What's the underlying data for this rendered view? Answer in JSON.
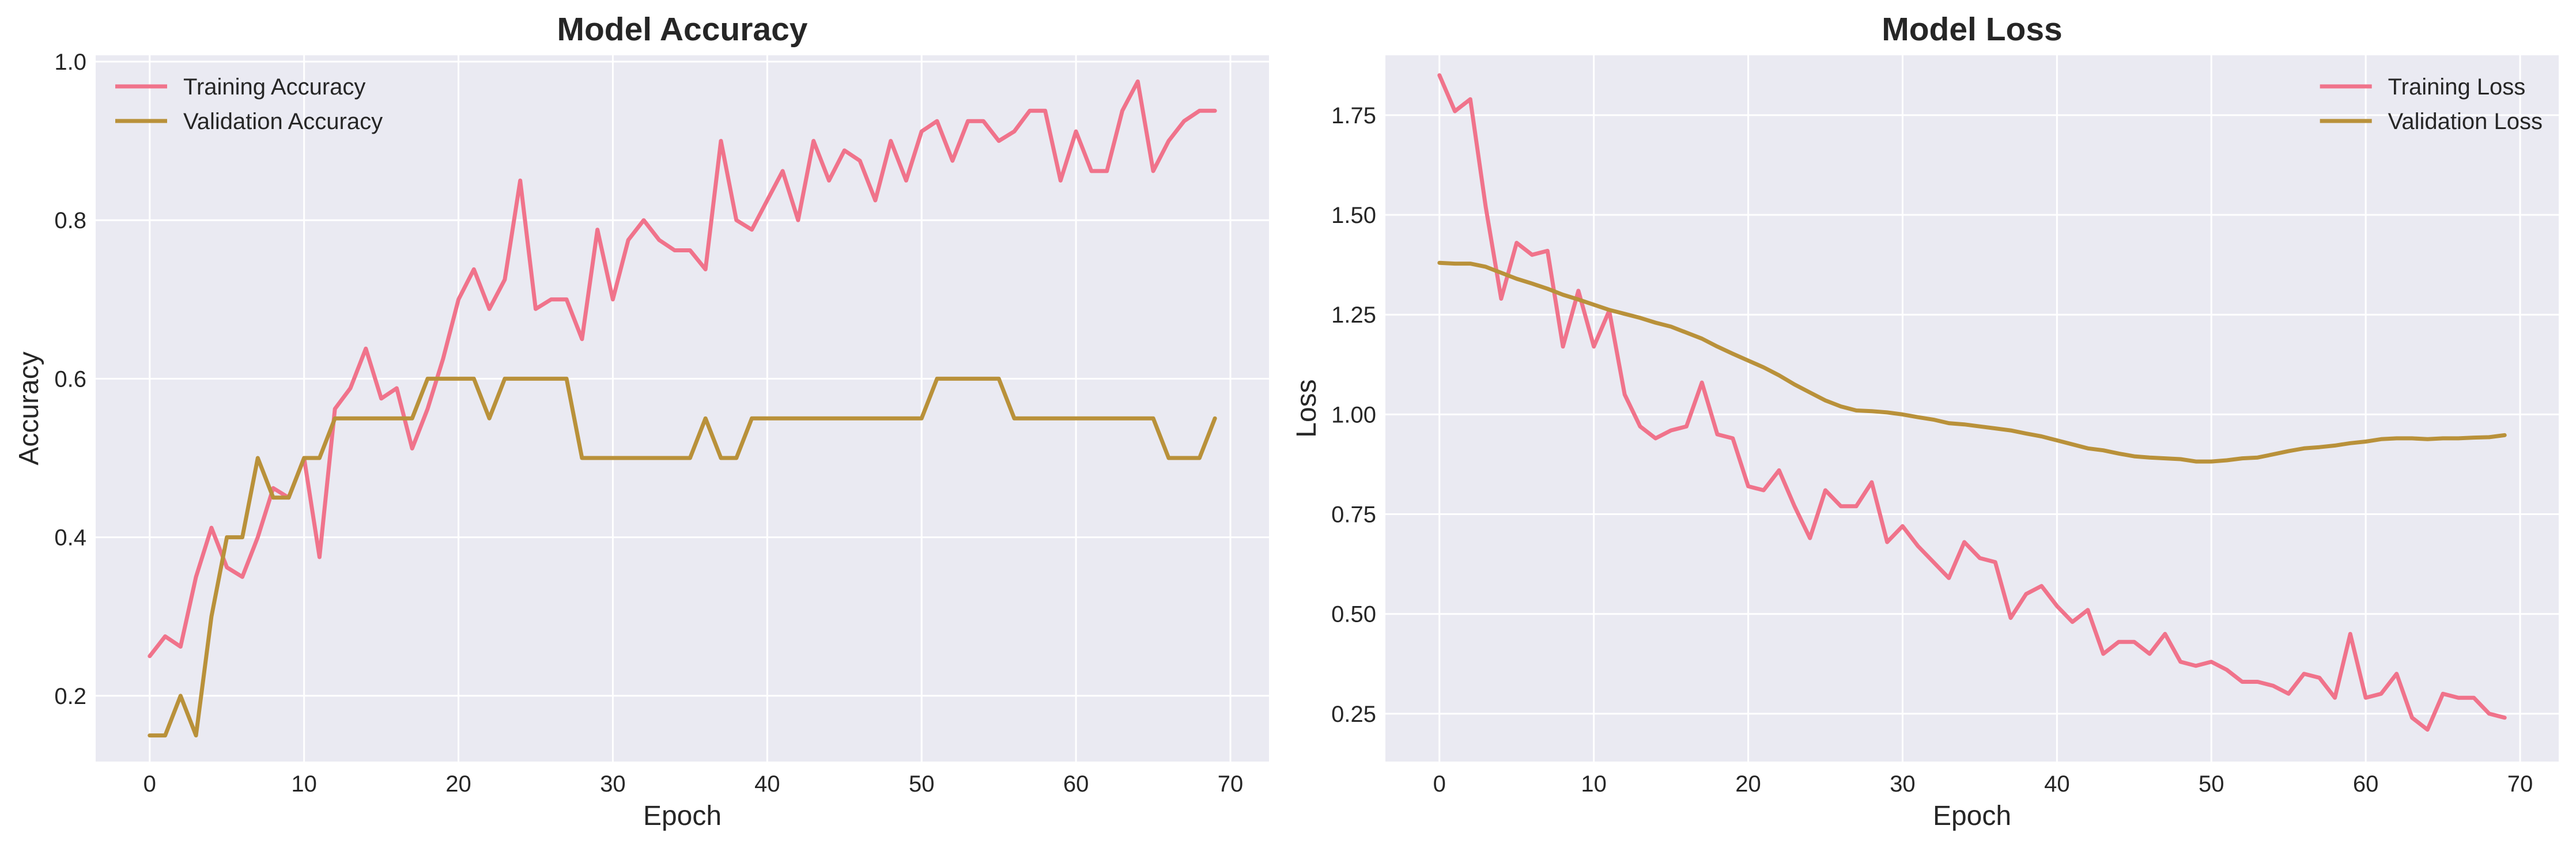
{
  "colors": {
    "training": "#f0738b",
    "validation": "#b9913a",
    "plot_bg": "#eaeaf2"
  },
  "chart_data": [
    {
      "type": "line",
      "title": "Model Accuracy",
      "xlabel": "Epoch",
      "ylabel": "Accuracy",
      "xlim": [
        -3.5,
        72.5
      ],
      "ylim": [
        0.117,
        1.008
      ],
      "xticks": [
        0,
        10,
        20,
        30,
        40,
        50,
        60,
        70
      ],
      "yticks": [
        0.2,
        0.4,
        0.6,
        0.8,
        1.0
      ],
      "ytick_labels": [
        "0.2",
        "0.4",
        "0.6",
        "0.8",
        "1.0"
      ],
      "grid": true,
      "legend": "upper-left",
      "series": [
        {
          "name": "Training Accuracy",
          "color": "#f0738b",
          "values": [
            0.25,
            0.275,
            0.262,
            0.35,
            0.412,
            0.362,
            0.35,
            0.4,
            0.462,
            0.45,
            0.5,
            0.375,
            0.562,
            0.588,
            0.638,
            0.575,
            0.588,
            0.512,
            0.562,
            0.625,
            0.7,
            0.738,
            0.688,
            0.725,
            0.85,
            0.688,
            0.7,
            0.7,
            0.65,
            0.788,
            0.7,
            0.775,
            0.8,
            0.775,
            0.762,
            0.762,
            0.738,
            0.9,
            0.8,
            0.788,
            0.825,
            0.862,
            0.8,
            0.9,
            0.85,
            0.888,
            0.875,
            0.825,
            0.9,
            0.85,
            0.912,
            0.925,
            0.875,
            0.925,
            0.925,
            0.9,
            0.912,
            0.938,
            0.938,
            0.85,
            0.912,
            0.862,
            0.862,
            0.938,
            0.975,
            0.862,
            0.9,
            0.925,
            0.938,
            0.938
          ]
        },
        {
          "name": "Validation Accuracy",
          "color": "#b9913a",
          "values": [
            0.15,
            0.15,
            0.2,
            0.15,
            0.3,
            0.4,
            0.4,
            0.5,
            0.45,
            0.45,
            0.5,
            0.5,
            0.55,
            0.55,
            0.55,
            0.55,
            0.55,
            0.55,
            0.6,
            0.6,
            0.6,
            0.6,
            0.55,
            0.6,
            0.6,
            0.6,
            0.6,
            0.6,
            0.5,
            0.5,
            0.5,
            0.5,
            0.5,
            0.5,
            0.5,
            0.5,
            0.55,
            0.5,
            0.5,
            0.55,
            0.55,
            0.55,
            0.55,
            0.55,
            0.55,
            0.55,
            0.55,
            0.55,
            0.55,
            0.55,
            0.55,
            0.6,
            0.6,
            0.6,
            0.6,
            0.6,
            0.55,
            0.55,
            0.55,
            0.55,
            0.55,
            0.55,
            0.55,
            0.55,
            0.55,
            0.55,
            0.5,
            0.5,
            0.5,
            0.55
          ]
        }
      ]
    },
    {
      "type": "line",
      "title": "Model Loss",
      "xlabel": "Epoch",
      "ylabel": "Loss",
      "xlim": [
        -3.5,
        72.5
      ],
      "ylim": [
        0.13,
        1.9
      ],
      "xticks": [
        0,
        10,
        20,
        30,
        40,
        50,
        60,
        70
      ],
      "yticks": [
        0.25,
        0.5,
        0.75,
        1.0,
        1.25,
        1.5,
        1.75
      ],
      "ytick_labels": [
        "0.25",
        "0.50",
        "0.75",
        "1.00",
        "1.25",
        "1.50",
        "1.75"
      ],
      "grid": true,
      "legend": "upper-right",
      "series": [
        {
          "name": "Training Loss",
          "color": "#f0738b",
          "values": [
            1.85,
            1.76,
            1.79,
            1.52,
            1.29,
            1.43,
            1.4,
            1.41,
            1.17,
            1.31,
            1.17,
            1.26,
            1.05,
            0.97,
            0.94,
            0.96,
            0.97,
            1.08,
            0.95,
            0.94,
            0.82,
            0.81,
            0.86,
            0.77,
            0.69,
            0.81,
            0.77,
            0.77,
            0.83,
            0.68,
            0.72,
            0.67,
            0.63,
            0.59,
            0.68,
            0.64,
            0.63,
            0.49,
            0.55,
            0.57,
            0.52,
            0.48,
            0.51,
            0.4,
            0.43,
            0.43,
            0.4,
            0.45,
            0.38,
            0.37,
            0.38,
            0.36,
            0.33,
            0.33,
            0.32,
            0.3,
            0.35,
            0.34,
            0.29,
            0.45,
            0.29,
            0.3,
            0.35,
            0.24,
            0.21,
            0.3,
            0.29,
            0.29,
            0.25,
            0.24
          ]
        },
        {
          "name": "Validation Loss",
          "color": "#b9913a",
          "values": [
            1.38,
            1.378,
            1.378,
            1.37,
            1.355,
            1.34,
            1.328,
            1.315,
            1.3,
            1.288,
            1.275,
            1.262,
            1.252,
            1.242,
            1.23,
            1.22,
            1.205,
            1.19,
            1.17,
            1.152,
            1.135,
            1.118,
            1.098,
            1.075,
            1.055,
            1.035,
            1.02,
            1.01,
            1.008,
            1.005,
            1.0,
            0.993,
            0.987,
            0.978,
            0.975,
            0.97,
            0.965,
            0.96,
            0.952,
            0.945,
            0.935,
            0.925,
            0.915,
            0.91,
            0.902,
            0.895,
            0.892,
            0.89,
            0.888,
            0.882,
            0.882,
            0.885,
            0.89,
            0.892,
            0.9,
            0.908,
            0.915,
            0.918,
            0.922,
            0.928,
            0.932,
            0.938,
            0.94,
            0.94,
            0.938,
            0.94,
            0.94,
            0.942,
            0.943,
            0.948
          ]
        }
      ]
    }
  ]
}
